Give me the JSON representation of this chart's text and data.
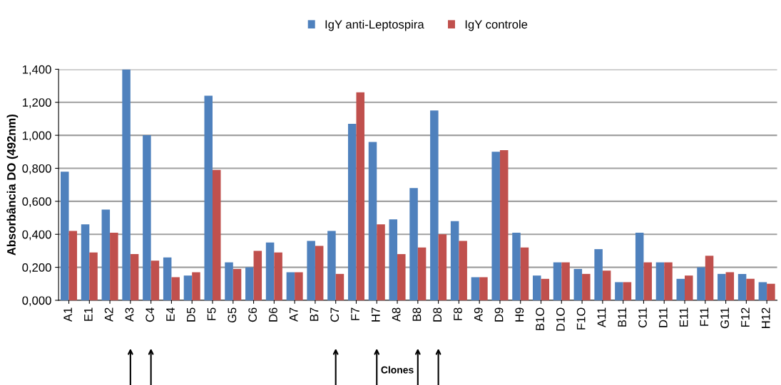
{
  "chart_data": {
    "type": "bar",
    "ylabel": "Absorbância DO (492nm)",
    "xlabel": "Clones",
    "categories": [
      "A1",
      "E1",
      "A2",
      "A3",
      "C4",
      "E4",
      "D5",
      "F5",
      "G5",
      "C6",
      "D6",
      "A7",
      "B7",
      "C7",
      "F7",
      "H7",
      "A8",
      "B8",
      "D8",
      "F8",
      "A9",
      "D9",
      "H9",
      "B1O",
      "D1O",
      "F1O",
      "A11",
      "B11",
      "C11",
      "D11",
      "E11",
      "F11",
      "G11",
      "F12",
      "H12"
    ],
    "series": [
      {
        "name": "IgY anti-Leptospira",
        "color": "#4f81bd",
        "values": [
          0.78,
          0.46,
          0.55,
          1.4,
          1.0,
          0.26,
          0.15,
          1.24,
          0.23,
          0.2,
          0.35,
          0.17,
          0.36,
          0.42,
          1.07,
          0.96,
          0.49,
          0.68,
          1.15,
          0.48,
          0.14,
          0.9,
          0.41,
          0.15,
          0.23,
          0.19,
          0.31,
          0.11,
          0.41,
          0.23,
          0.13,
          0.2,
          0.16,
          0.16,
          0.11
        ]
      },
      {
        "name": "IgY controle",
        "color": "#c0504d",
        "values": [
          0.42,
          0.29,
          0.41,
          0.28,
          0.24,
          0.14,
          0.17,
          0.79,
          0.19,
          0.3,
          0.29,
          0.17,
          0.33,
          0.16,
          1.26,
          0.46,
          0.28,
          0.32,
          0.4,
          0.36,
          0.14,
          0.91,
          0.32,
          0.13,
          0.23,
          0.16,
          0.18,
          0.11,
          0.23,
          0.23,
          0.15,
          0.27,
          0.17,
          0.13,
          0.1
        ]
      }
    ],
    "ylim": [
      0,
      1.4
    ],
    "yticks": [
      {
        "value": 0,
        "label": "0,000"
      },
      {
        "value": 0.2,
        "label": "0,200"
      },
      {
        "value": 0.4,
        "label": "0,400"
      },
      {
        "value": 0.6,
        "label": "0,600"
      },
      {
        "value": 0.8,
        "label": "0,800"
      },
      {
        "value": 1.0,
        "label": "1,000"
      },
      {
        "value": 1.2,
        "label": "1,200"
      },
      {
        "value": 1.4,
        "label": "1,400"
      }
    ],
    "grid": "y",
    "legend": "top"
  }
}
